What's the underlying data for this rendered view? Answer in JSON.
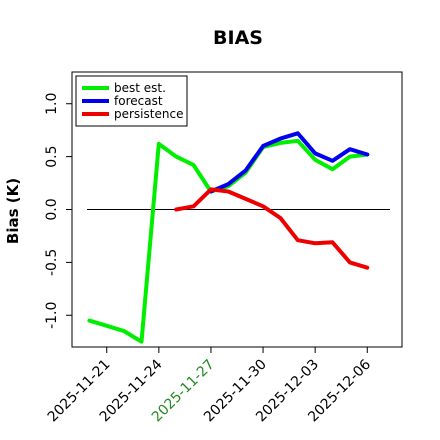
{
  "chart_data": {
    "type": "line",
    "title": "BIAS",
    "xlabel": "",
    "ylabel": "Bias (K)",
    "xlim": [
      "2025-11-19",
      "2025-12-08"
    ],
    "ylim": [
      -1.3,
      1.3
    ],
    "yticks": [
      1.0,
      0.5,
      0.0,
      -0.5,
      -1.0
    ],
    "ytick_labels": [
      "1.0",
      "0.5",
      "0.0",
      "-0.5",
      "-1.0"
    ],
    "xticks": [
      "2025-11-21",
      "2025-11-24",
      "2025-11-27",
      "2025-11-30",
      "2025-12-03",
      "2025-12-06"
    ],
    "xtick_labels": [
      "2025-11-21",
      "2025-11-24",
      "2025-11-27",
      "2025-11-30",
      "2025-12-03",
      "2025-12-06"
    ],
    "highlight_tick_color": "#228b22",
    "highlight_tick": "2025-11-27",
    "zero_line": true,
    "legend_position": "top-left",
    "series": [
      {
        "name": "best est.",
        "color": "#00ee00",
        "x": [
          "2025-11-20",
          "2025-11-22",
          "2025-11-23",
          "2025-11-24",
          "2025-11-25",
          "2025-11-26",
          "2025-11-27",
          "2025-11-28",
          "2025-11-29",
          "2025-11-30",
          "2025-12-01",
          "2025-12-02",
          "2025-12-03",
          "2025-12-04",
          "2025-12-05",
          "2025-12-06"
        ],
        "values": [
          -1.05,
          -1.15,
          -1.25,
          0.62,
          0.5,
          0.42,
          0.17,
          0.22,
          0.35,
          0.59,
          0.63,
          0.65,
          0.47,
          0.38,
          0.5,
          0.52
        ]
      },
      {
        "name": "forecast",
        "color": "#0000ee",
        "x": [
          "2025-11-27",
          "2025-11-28",
          "2025-11-29",
          "2025-11-30",
          "2025-12-01",
          "2025-12-02",
          "2025-12-03",
          "2025-12-04",
          "2025-12-05",
          "2025-12-06"
        ],
        "values": [
          0.17,
          0.24,
          0.37,
          0.6,
          0.67,
          0.72,
          0.53,
          0.46,
          0.57,
          0.52
        ]
      },
      {
        "name": "persistence",
        "color": "#ee0000",
        "x": [
          "2025-11-25",
          "2025-11-26",
          "2025-11-27",
          "2025-11-28",
          "2025-11-29",
          "2025-11-30",
          "2025-12-01",
          "2025-12-02",
          "2025-12-03",
          "2025-12-04",
          "2025-12-05",
          "2025-12-06"
        ],
        "values": [
          0.0,
          0.03,
          0.19,
          0.17,
          0.1,
          0.03,
          -0.08,
          -0.29,
          -0.32,
          -0.31,
          -0.5,
          -0.55
        ]
      }
    ]
  }
}
